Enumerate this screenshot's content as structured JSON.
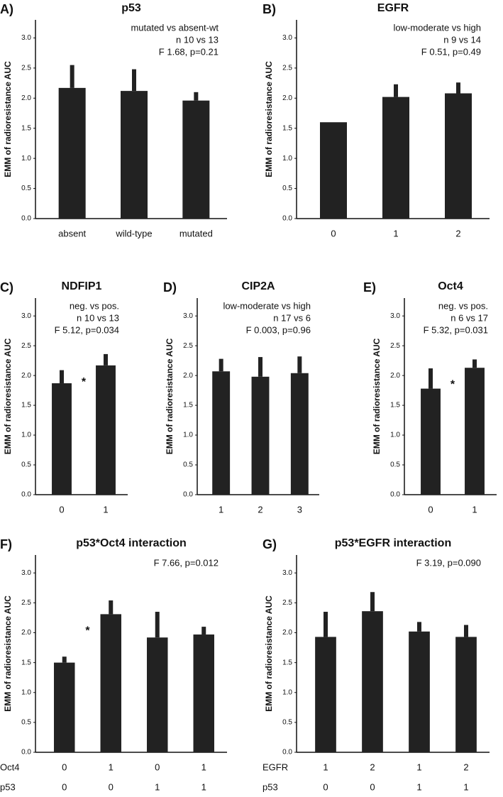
{
  "chart_data": [
    {
      "type": "bar",
      "panel": "A)",
      "title": "p53",
      "annotations": [
        "mutated vs absent-wt",
        "n 10 vs 13",
        "F 1.68, p=0.21"
      ],
      "categories": [
        "absent",
        "wild-type",
        "mutated"
      ],
      "values": [
        2.17,
        2.12,
        1.96
      ],
      "errors": [
        0.38,
        0.36,
        0.14
      ],
      "color": "#222222",
      "ylabel": "EMM of radioresistance AUC",
      "ylim": [
        0,
        3.3
      ],
      "yticks": [
        {
          "value": 0,
          "label": "0.0"
        },
        0.5,
        {
          "value": 1,
          "label": "1.0"
        },
        1.5,
        {
          "value": 2,
          "label": "2.0"
        },
        2.5,
        {
          "value": 3,
          "label": "3.0"
        }
      ]
    },
    {
      "type": "bar",
      "panel": "B)",
      "title": "EGFR",
      "annotations": [
        "low-moderate vs high",
        "n 9 vs 14",
        "F 0.51, p=0.49"
      ],
      "categories": [
        "0",
        "1",
        "2"
      ],
      "values": [
        1.6,
        2.02,
        2.08
      ],
      "errors": [
        null,
        0.21,
        0.18
      ],
      "color": "#222222",
      "ylabel": "EMM of radioresistance AUC",
      "ylim": [
        0,
        3.3
      ],
      "yticks": [
        {
          "value": 0,
          "label": "0.0"
        },
        0.5,
        {
          "value": 1,
          "label": "1.0"
        },
        1.5,
        {
          "value": 2,
          "label": "2.0"
        },
        2.5,
        {
          "value": 3,
          "label": "3.0"
        }
      ]
    },
    {
      "type": "bar",
      "panel": "C)",
      "title": "NDFIP1",
      "annotations": [
        "neg. vs pos.",
        "n 10 vs 13",
        "F 5.12, p=0.034"
      ],
      "significance": "*",
      "categories": [
        "0",
        "1"
      ],
      "values": [
        1.87,
        2.17
      ],
      "errors": [
        0.22,
        0.19
      ],
      "color": "#222222",
      "ylabel": "EMM of radioresistance AUC",
      "ylim": [
        0,
        3.3
      ],
      "yticks": [
        {
          "value": 0,
          "label": "0.0"
        },
        0.5,
        {
          "value": 1,
          "label": "1.0"
        },
        1.5,
        {
          "value": 2,
          "label": "2.0"
        },
        2.5,
        {
          "value": 3,
          "label": "3.0"
        }
      ]
    },
    {
      "type": "bar",
      "panel": "D)",
      "title": "CIP2A",
      "annotations": [
        "low-moderate vs high",
        "n 17 vs 6",
        "F 0.003, p=0.96"
      ],
      "categories": [
        "1",
        "2",
        "3"
      ],
      "values": [
        2.07,
        1.98,
        2.04
      ],
      "errors": [
        0.21,
        0.33,
        0.28
      ],
      "color": "#222222",
      "ylabel": "EMM of radioresistance AUC",
      "ylim": [
        0,
        3.3
      ],
      "yticks": [
        {
          "value": 0,
          "label": "0.0"
        },
        0.5,
        {
          "value": 1,
          "label": "1.0"
        },
        1.5,
        {
          "value": 2,
          "label": "2.0"
        },
        2.5,
        {
          "value": 3,
          "label": "3.0"
        }
      ]
    },
    {
      "type": "bar",
      "panel": "E)",
      "title": "Oct4",
      "annotations": [
        "neg. vs pos.",
        "n 6 vs 17",
        "F 5.32, p=0.031"
      ],
      "significance": "*",
      "categories": [
        "0",
        "1"
      ],
      "values": [
        1.78,
        2.13
      ],
      "errors": [
        0.34,
        0.14
      ],
      "color": "#222222",
      "ylabel": "EMM of radioresistance AUC",
      "ylim": [
        0,
        3.3
      ],
      "yticks": [
        {
          "value": 0,
          "label": "0.0"
        },
        0.5,
        {
          "value": 1,
          "label": "1.0"
        },
        1.5,
        {
          "value": 2,
          "label": "2.0"
        },
        2.5,
        {
          "value": 3,
          "label": "3.0"
        }
      ]
    },
    {
      "type": "bar",
      "panel": "F)",
      "title": "p53*Oct4 interaction",
      "annotations": [
        "F 7.66, p=0.012"
      ],
      "significance": "*",
      "category_rows": [
        {
          "name": "Oct4",
          "labels": [
            "0",
            "1",
            "0",
            "1"
          ]
        },
        {
          "name": "p53",
          "labels": [
            "0",
            "0",
            "1",
            "1"
          ]
        }
      ],
      "values": [
        1.5,
        2.31,
        1.92,
        1.97
      ],
      "errors": [
        0.1,
        0.23,
        0.43,
        0.13
      ],
      "color": "#222222",
      "ylabel": "EMM of radioresistance AUC",
      "ylim": [
        0,
        3.3
      ],
      "yticks": [
        {
          "value": 0,
          "label": "0.0"
        },
        0.5,
        {
          "value": 1,
          "label": "1.0"
        },
        1.5,
        {
          "value": 2,
          "label": "2.0"
        },
        2.5,
        {
          "value": 3,
          "label": "3.0"
        }
      ]
    },
    {
      "type": "bar",
      "panel": "G)",
      "title": "p53*EGFR interaction",
      "annotations": [
        "F 3.19, p=0.090"
      ],
      "category_rows": [
        {
          "name": "EGFR",
          "labels": [
            "1",
            "2",
            "1",
            "2"
          ]
        },
        {
          "name": "p53",
          "labels": [
            "0",
            "0",
            "1",
            "1"
          ]
        }
      ],
      "values": [
        1.93,
        2.36,
        2.02,
        1.93
      ],
      "errors": [
        0.42,
        0.32,
        0.16,
        0.2
      ],
      "color": "#222222",
      "ylabel": "EMM of radioresistance AUC",
      "ylim": [
        0,
        3.3
      ],
      "yticks": [
        {
          "value": 0,
          "label": "0.0"
        },
        0.5,
        {
          "value": 1,
          "label": "1.0"
        },
        1.5,
        {
          "value": 2,
          "label": "2.0"
        },
        2.5,
        {
          "value": 3,
          "label": "3.0"
        }
      ]
    }
  ]
}
